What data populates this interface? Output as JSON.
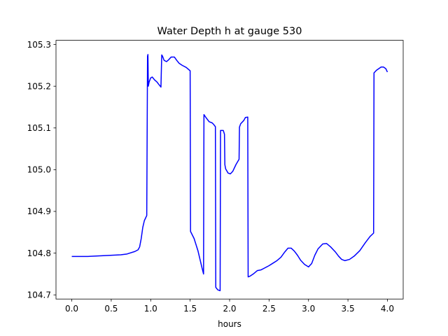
{
  "chart_data": {
    "type": "line",
    "title": "Water Depth h at gauge 530",
    "xlabel": "hours",
    "ylabel": "",
    "xlim": [
      -0.2,
      4.2
    ],
    "ylim": [
      104.69,
      105.31
    ],
    "x_ticks": [
      0.0,
      0.5,
      1.0,
      1.5,
      2.0,
      2.5,
      3.0,
      3.5,
      4.0
    ],
    "x_tick_labels": [
      "0.0",
      "0.5",
      "1.0",
      "1.5",
      "2.0",
      "2.5",
      "3.0",
      "3.5",
      "4.0"
    ],
    "y_ticks": [
      104.7,
      104.8,
      104.9,
      105.0,
      105.1,
      105.2,
      105.3
    ],
    "y_tick_labels": [
      "104.7",
      "104.8",
      "104.9",
      "105.0",
      "105.1",
      "105.2",
      "105.3"
    ],
    "grid": false,
    "legend": "none",
    "series": [
      {
        "color": "#0000ff",
        "x": [
          0.0,
          0.2,
          0.4,
          0.62,
          0.7,
          0.8,
          0.84,
          0.86,
          0.88,
          0.9,
          0.92,
          0.95,
          0.96,
          0.965,
          0.97,
          0.975,
          0.98,
          1.0,
          1.02,
          1.05,
          1.08,
          1.1,
          1.13,
          1.14,
          1.15,
          1.17,
          1.2,
          1.22,
          1.26,
          1.3,
          1.33,
          1.36,
          1.4,
          1.45,
          1.5,
          1.505,
          1.55,
          1.6,
          1.65,
          1.67,
          1.675,
          1.7,
          1.74,
          1.78,
          1.8,
          1.82,
          1.825,
          1.85,
          1.88,
          1.885,
          1.92,
          1.935,
          1.94,
          1.95,
          1.98,
          2.01,
          2.04,
          2.08,
          2.12,
          2.125,
          2.14,
          2.18,
          2.2,
          2.23,
          2.235,
          2.26,
          2.3,
          2.35,
          2.4,
          2.45,
          2.5,
          2.55,
          2.6,
          2.65,
          2.7,
          2.74,
          2.78,
          2.82,
          2.86,
          2.9,
          2.95,
          3.0,
          3.04,
          3.08,
          3.12,
          3.18,
          3.23,
          3.28,
          3.34,
          3.38,
          3.42,
          3.46,
          3.52,
          3.58,
          3.65,
          3.72,
          3.78,
          3.825,
          3.83,
          3.86,
          3.89,
          3.92,
          3.95,
          3.98,
          4.0
        ],
        "y": [
          104.792,
          104.792,
          104.794,
          104.796,
          104.798,
          104.804,
          104.808,
          104.815,
          104.835,
          104.862,
          104.878,
          104.89,
          105.272,
          105.276,
          105.2,
          105.205,
          105.21,
          105.22,
          105.222,
          105.215,
          105.21,
          105.205,
          105.198,
          105.275,
          105.272,
          105.262,
          105.259,
          105.262,
          105.27,
          105.27,
          105.262,
          105.255,
          105.25,
          105.245,
          105.237,
          104.852,
          104.835,
          104.805,
          104.765,
          104.75,
          105.132,
          105.125,
          105.115,
          105.112,
          105.108,
          105.103,
          104.718,
          104.712,
          104.71,
          105.094,
          105.094,
          105.085,
          105.012,
          105.002,
          104.992,
          104.99,
          104.996,
          105.012,
          105.025,
          105.102,
          105.11,
          105.118,
          105.125,
          105.126,
          104.743,
          104.745,
          104.75,
          104.758,
          104.76,
          104.765,
          104.77,
          104.776,
          104.782,
          104.79,
          104.803,
          104.812,
          104.812,
          104.805,
          104.795,
          104.783,
          104.773,
          104.767,
          104.775,
          104.795,
          104.81,
          104.822,
          104.823,
          104.815,
          104.803,
          104.793,
          104.785,
          104.782,
          104.785,
          104.793,
          104.806,
          104.825,
          104.84,
          104.848,
          105.232,
          105.238,
          105.242,
          105.246,
          105.246,
          105.242,
          105.234
        ]
      }
    ]
  }
}
